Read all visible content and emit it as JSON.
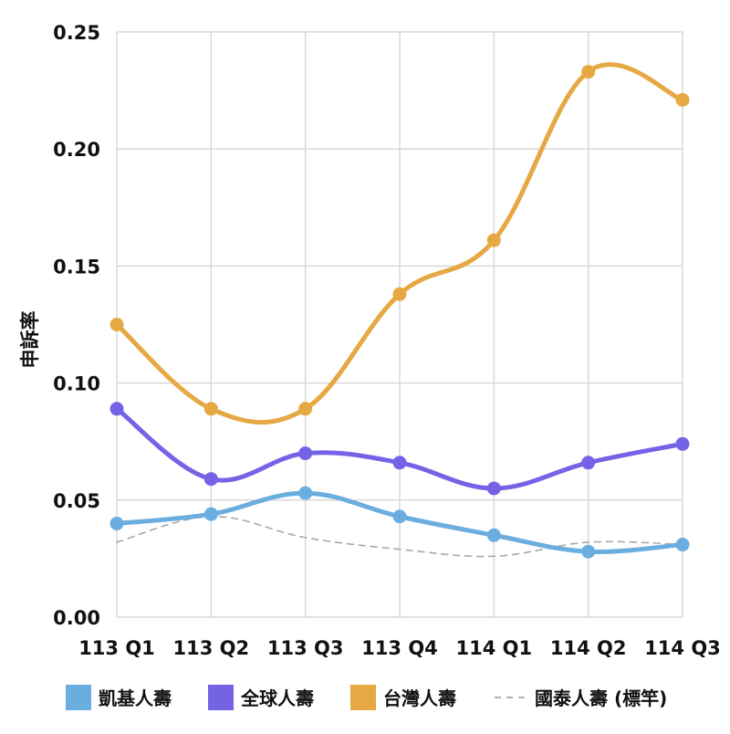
{
  "chart_data": {
    "type": "line",
    "categories": [
      "113 Q1",
      "113 Q2",
      "113 Q3",
      "113 Q4",
      "114 Q1",
      "114 Q2",
      "114 Q3"
    ],
    "ylabel": "申訴率",
    "xlabel": "",
    "title": "",
    "ylim": [
      0,
      0.25
    ],
    "yticks": [
      "0.00",
      "0.05",
      "0.10",
      "0.15",
      "0.20",
      "0.25"
    ],
    "grid": true,
    "legend_position": "bottom",
    "series": [
      {
        "name": "凱基人壽",
        "values": [
          0.04,
          0.044,
          0.053,
          0.043,
          0.035,
          0.028,
          0.031
        ],
        "color": "#6aaee0",
        "style": "solid",
        "markers": true
      },
      {
        "name": "全球人壽",
        "values": [
          0.089,
          0.059,
          0.07,
          0.066,
          0.055,
          0.066,
          0.074
        ],
        "color": "#7563e6",
        "style": "solid",
        "markers": true
      },
      {
        "name": "台灣人壽",
        "values": [
          0.125,
          0.089,
          0.089,
          0.138,
          0.161,
          0.233,
          0.221
        ],
        "color": "#e5a843",
        "style": "solid",
        "markers": true
      },
      {
        "name": "國泰人壽 (標竿)",
        "values": [
          0.032,
          0.043,
          0.034,
          0.029,
          0.026,
          0.032,
          0.031
        ],
        "color": "#a8a8a8",
        "style": "dashed",
        "markers": false
      }
    ]
  }
}
